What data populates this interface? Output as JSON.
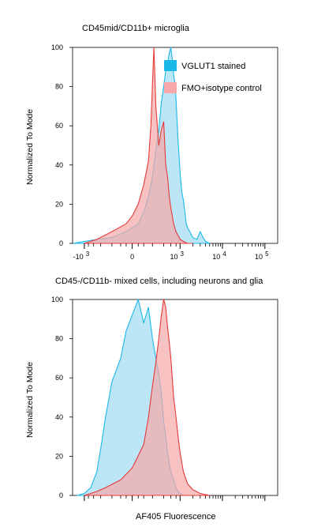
{
  "chart_data": [
    {
      "type": "area",
      "title": "CD45mid/CD11b+ microglia",
      "ylabel": "Normalized To Mode",
      "xlabel": "",
      "ylim": [
        0,
        100
      ],
      "yticks": [
        0,
        20,
        40,
        60,
        80,
        100
      ],
      "xscale": "biexponential",
      "xticks": [
        {
          "base": "-10",
          "exp": "3"
        },
        {
          "base": "0",
          "exp": ""
        },
        {
          "base": "10",
          "exp": "3"
        },
        {
          "base": "10",
          "exp": "4"
        },
        {
          "base": "10",
          "exp": "5"
        }
      ],
      "legend_position": "top-right",
      "grid": false,
      "series": [
        {
          "name": "VGLUT1 stained",
          "color": "#1ab8e8",
          "fill": "#9fdcf2",
          "x": [
            -1800,
            -1000,
            -500,
            -200,
            -50,
            50,
            100,
            150,
            200,
            250,
            300,
            350,
            400,
            450,
            500,
            550,
            600,
            650,
            700,
            750,
            800,
            850,
            900,
            950,
            1000,
            1100,
            1200,
            1300,
            1400,
            1500,
            1700,
            2000,
            2500,
            3000,
            3500,
            4000,
            5000
          ],
          "y": [
            0,
            1,
            2,
            3,
            6,
            10,
            16,
            24,
            34,
            48,
            58,
            72,
            80,
            88,
            92,
            97,
            100,
            94,
            86,
            82,
            74,
            62,
            52,
            44,
            36,
            26,
            22,
            16,
            10,
            8,
            6,
            3,
            2,
            6,
            3,
            1,
            0
          ]
        },
        {
          "name": "FMO+isotype control",
          "color": "#e53a3a",
          "fill": "#f7a8a8",
          "x": [
            -1000,
            -500,
            -200,
            -50,
            0,
            50,
            100,
            150,
            180,
            200,
            220,
            250,
            300,
            350,
            400,
            450,
            500,
            550,
            600,
            650,
            700,
            800,
            900,
            1000,
            1200,
            1500,
            2000
          ],
          "y": [
            0,
            2,
            6,
            10,
            14,
            20,
            30,
            42,
            60,
            82,
            100,
            70,
            50,
            58,
            62,
            40,
            34,
            24,
            18,
            14,
            10,
            6,
            4,
            2,
            1,
            0,
            0
          ]
        }
      ]
    },
    {
      "type": "area",
      "title": "CD45-/CD11b- mixed cells, including neurons and glia",
      "ylabel": "Normalized To Mode",
      "xlabel": "AF405 Fluorescence",
      "ylim": [
        0,
        100
      ],
      "yticks": [
        0,
        20,
        40,
        60,
        80,
        100
      ],
      "xscale": "biexponential",
      "grid": false,
      "series": [
        {
          "name": "VGLUT1 stained",
          "color": "#1ab8e8",
          "fill": "#9fdcf2",
          "x": [
            -1500,
            -1000,
            -700,
            -500,
            -400,
            -300,
            -200,
            -100,
            -50,
            0,
            50,
            100,
            150,
            200,
            250,
            300,
            350,
            400,
            450,
            500,
            550,
            600,
            700,
            800,
            900,
            1000,
            1200,
            1500
          ],
          "y": [
            0,
            1,
            4,
            12,
            24,
            40,
            58,
            70,
            84,
            92,
            100,
            88,
            96,
            80,
            70,
            62,
            52,
            38,
            30,
            22,
            16,
            12,
            8,
            4,
            2,
            1,
            0,
            0
          ]
        },
        {
          "name": "FMO+isotype control",
          "color": "#e53a3a",
          "fill": "#f7a8a8",
          "x": [
            -1000,
            -500,
            -300,
            -100,
            0,
            100,
            150,
            200,
            250,
            300,
            350,
            400,
            450,
            500,
            550,
            600,
            650,
            700,
            800,
            900,
            1000,
            1200,
            1500,
            2000,
            3000,
            5000
          ],
          "y": [
            0,
            2,
            4,
            8,
            14,
            26,
            40,
            56,
            68,
            80,
            92,
            100,
            96,
            86,
            78,
            70,
            60,
            50,
            40,
            30,
            22,
            12,
            6,
            3,
            1,
            0
          ]
        }
      ]
    }
  ]
}
